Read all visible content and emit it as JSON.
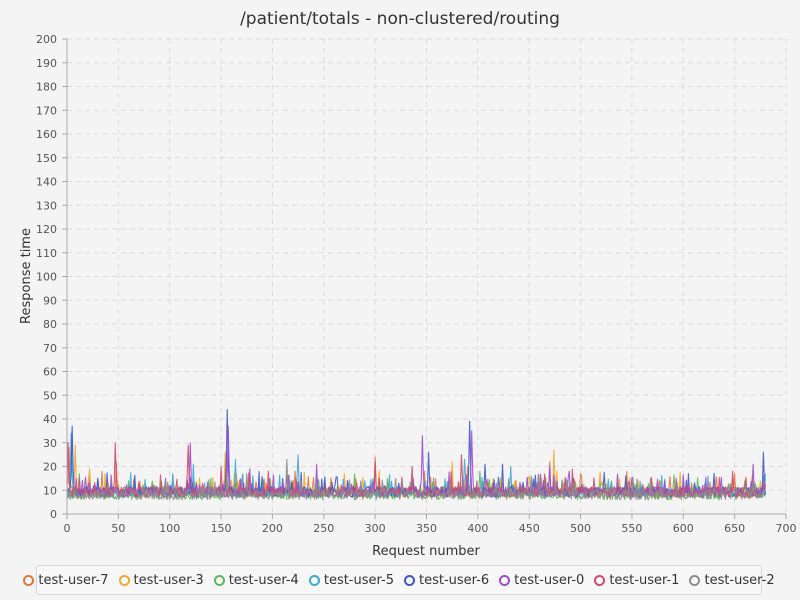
{
  "chart_data": {
    "type": "line",
    "title": "/patient/totals - non-clustered/routing",
    "xlabel": "Request number",
    "ylabel": "Response time",
    "xlim": [
      0,
      700
    ],
    "ylim": [
      0,
      200
    ],
    "x_ticks": [
      0,
      50,
      100,
      150,
      200,
      250,
      300,
      350,
      400,
      450,
      500,
      550,
      600,
      650,
      700
    ],
    "y_ticks": [
      0,
      10,
      20,
      30,
      40,
      50,
      60,
      70,
      80,
      90,
      100,
      110,
      120,
      130,
      140,
      150,
      160,
      170,
      180,
      190,
      200
    ],
    "grid": true,
    "legend_position": "bottom",
    "requests_per_series": 680,
    "series": [
      {
        "name": "test-user-7",
        "color": "#e8743b",
        "typical": 9,
        "peaks": [
          [
            2,
            28
          ],
          [
            48,
            22
          ],
          [
            155,
            25
          ],
          [
            222,
            18
          ],
          [
            300,
            24
          ],
          [
            348,
            18
          ],
          [
            390,
            20
          ],
          [
            470,
            22
          ],
          [
            540,
            11
          ],
          [
            650,
            17
          ]
        ]
      },
      {
        "name": "test-user-3",
        "color": "#f0a830",
        "typical": 9,
        "peaks": [
          [
            8,
            29
          ],
          [
            22,
            19
          ],
          [
            86,
            12
          ],
          [
            154,
            26
          ],
          [
            270,
            17
          ],
          [
            375,
            22
          ],
          [
            474,
            27
          ],
          [
            520,
            12
          ],
          [
            675,
            14
          ]
        ]
      },
      {
        "name": "test-user-4",
        "color": "#5cb85c",
        "typical": 8,
        "peaks": [
          [
            12,
            17
          ],
          [
            60,
            14
          ],
          [
            140,
            15
          ],
          [
            218,
            14
          ],
          [
            312,
            15
          ],
          [
            402,
            18
          ],
          [
            482,
            14
          ],
          [
            590,
            11
          ],
          [
            660,
            14
          ]
        ]
      },
      {
        "name": "test-user-5",
        "color": "#3ea8d8",
        "typical": 9,
        "peaks": [
          [
            4,
            34
          ],
          [
            103,
            17
          ],
          [
            123,
            21
          ],
          [
            164,
            23
          ],
          [
            225,
            25
          ],
          [
            290,
            14
          ],
          [
            387,
            23
          ],
          [
            432,
            20
          ],
          [
            560,
            11
          ],
          [
            680,
            17
          ]
        ]
      },
      {
        "name": "test-user-6",
        "color": "#3d57c6",
        "typical": 9,
        "peaks": [
          [
            5,
            37
          ],
          [
            30,
            15
          ],
          [
            156,
            44
          ],
          [
            210,
            15
          ],
          [
            352,
            26
          ],
          [
            392,
            39
          ],
          [
            407,
            21
          ],
          [
            424,
            21
          ],
          [
            605,
            17
          ],
          [
            678,
            26
          ]
        ]
      },
      {
        "name": "test-user-0",
        "color": "#9b4ed0",
        "typical": 9,
        "peaks": [
          [
            120,
            30
          ],
          [
            157,
            37
          ],
          [
            178,
            19
          ],
          [
            243,
            21
          ],
          [
            346,
            33
          ],
          [
            394,
            35
          ],
          [
            470,
            20
          ],
          [
            668,
            21
          ]
        ]
      },
      {
        "name": "test-user-1",
        "color": "#d24a6d",
        "typical": 9,
        "peaks": [
          [
            1,
            30
          ],
          [
            47,
            30
          ],
          [
            118,
            29
          ],
          [
            150,
            20
          ],
          [
            196,
            18
          ],
          [
            300,
            22
          ],
          [
            336,
            20
          ],
          [
            384,
            25
          ],
          [
            492,
            19
          ],
          [
            648,
            18
          ]
        ]
      },
      {
        "name": "test-user-2",
        "color": "#8c8c8c",
        "typical": 8,
        "peaks": [
          [
            40,
            13
          ],
          [
            95,
            12
          ],
          [
            175,
            17
          ],
          [
            214,
            23
          ],
          [
            320,
            15
          ],
          [
            418,
            13
          ],
          [
            510,
            10
          ],
          [
            630,
            11
          ]
        ]
      }
    ]
  }
}
